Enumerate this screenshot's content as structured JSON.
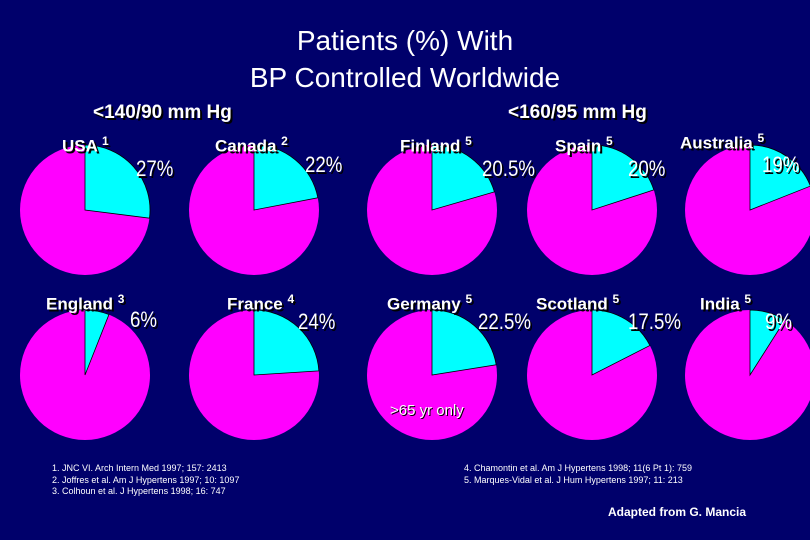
{
  "title_line1": "Patients (%) With",
  "title_line2": "BP Controlled Worldwide",
  "group_left": "<140/90 mm Hg",
  "group_right": "<160/95 mm Hg",
  "note": ">65 yr only",
  "colors": {
    "controlled": "#00ffff",
    "uncontrolled": "#ff00ff",
    "background": "#00006b"
  },
  "refs_left": [
    "1.  JNC VI. Arch Intern Med 1997; 157: 2413",
    "2.  Joffres et al. Am J Hypertens 1997; 10: 1097",
    "3.  Colhoun et al. J Hypertens 1998; 16: 747"
  ],
  "refs_right": [
    "4. Chamontin et al. Am J Hypertens 1998; 11(6 Pt 1): 759",
    "5. Marques-Vidal et al. J Hum Hypertens 1997; 11: 213"
  ],
  "credit": "Adapted from G. Mancia",
  "chart_data": [
    {
      "type": "pie",
      "name": "USA",
      "ref": "1",
      "value": 27,
      "label": "27%",
      "group": "<140/90 mm Hg"
    },
    {
      "type": "pie",
      "name": "Canada",
      "ref": "2",
      "value": 22,
      "label": "22%",
      "group": "<140/90 mm Hg"
    },
    {
      "type": "pie",
      "name": "England",
      "ref": "3",
      "value": 6,
      "label": "6%",
      "group": "<140/90 mm Hg"
    },
    {
      "type": "pie",
      "name": "France",
      "ref": "4",
      "value": 24,
      "label": "24%",
      "group": "<140/90 mm Hg"
    },
    {
      "type": "pie",
      "name": "Finland",
      "ref": "5",
      "value": 20.5,
      "label": "20.5%",
      "group": "<160/95 mm Hg"
    },
    {
      "type": "pie",
      "name": "Spain",
      "ref": "5",
      "value": 20,
      "label": "20%",
      "group": "<160/95 mm Hg"
    },
    {
      "type": "pie",
      "name": "Australia",
      "ref": "5",
      "value": 19,
      "label": "19%",
      "group": "<160/95 mm Hg"
    },
    {
      "type": "pie",
      "name": "Germany",
      "ref": "5",
      "value": 22.5,
      "label": "22.5%",
      "group": "<160/95 mm Hg"
    },
    {
      "type": "pie",
      "name": "Scotland",
      "ref": "5",
      "value": 17.5,
      "label": "17.5%",
      "group": "<160/95 mm Hg"
    },
    {
      "type": "pie",
      "name": "India",
      "ref": "5",
      "value": 9,
      "label": "9%",
      "group": "<160/95 mm Hg"
    }
  ]
}
